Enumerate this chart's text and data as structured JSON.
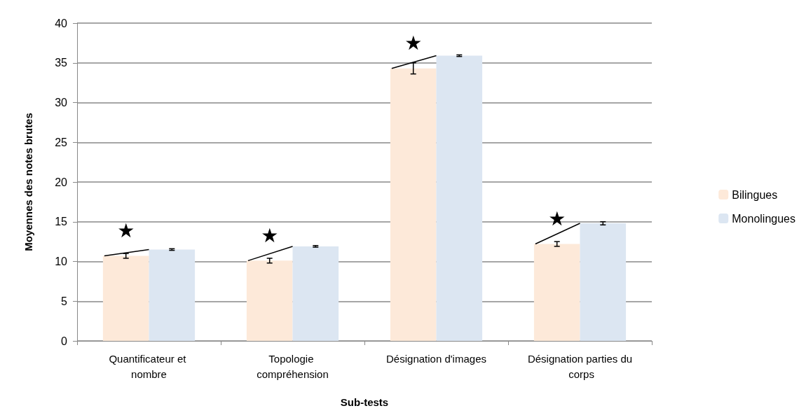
{
  "chart_data": {
    "type": "bar",
    "xlabel": "Sub-tests",
    "ylabel": "Moyennes des notes brutes",
    "categories": [
      "Quantificateur et nombre",
      "Topologie compréhension",
      "Désignation d'images",
      "Désignation parties du corps"
    ],
    "series": [
      {
        "name": "Bilingues",
        "color": "#fde9d9",
        "values": [
          10.7,
          10.1,
          34.3,
          12.2
        ],
        "errors": [
          0.3,
          0.3,
          0.7,
          0.3
        ]
      },
      {
        "name": "Monolingues",
        "color": "#dce6f2",
        "values": [
          11.5,
          11.9,
          35.9,
          14.8
        ],
        "errors": [
          0.1,
          0.1,
          0.1,
          0.2
        ]
      }
    ],
    "ylim": [
      0,
      40
    ],
    "yticks": [
      0,
      5,
      10,
      15,
      20,
      25,
      30,
      35,
      40
    ],
    "grid": "y",
    "legend": "right",
    "annotations": [
      "★",
      "★",
      "★",
      "★"
    ]
  }
}
